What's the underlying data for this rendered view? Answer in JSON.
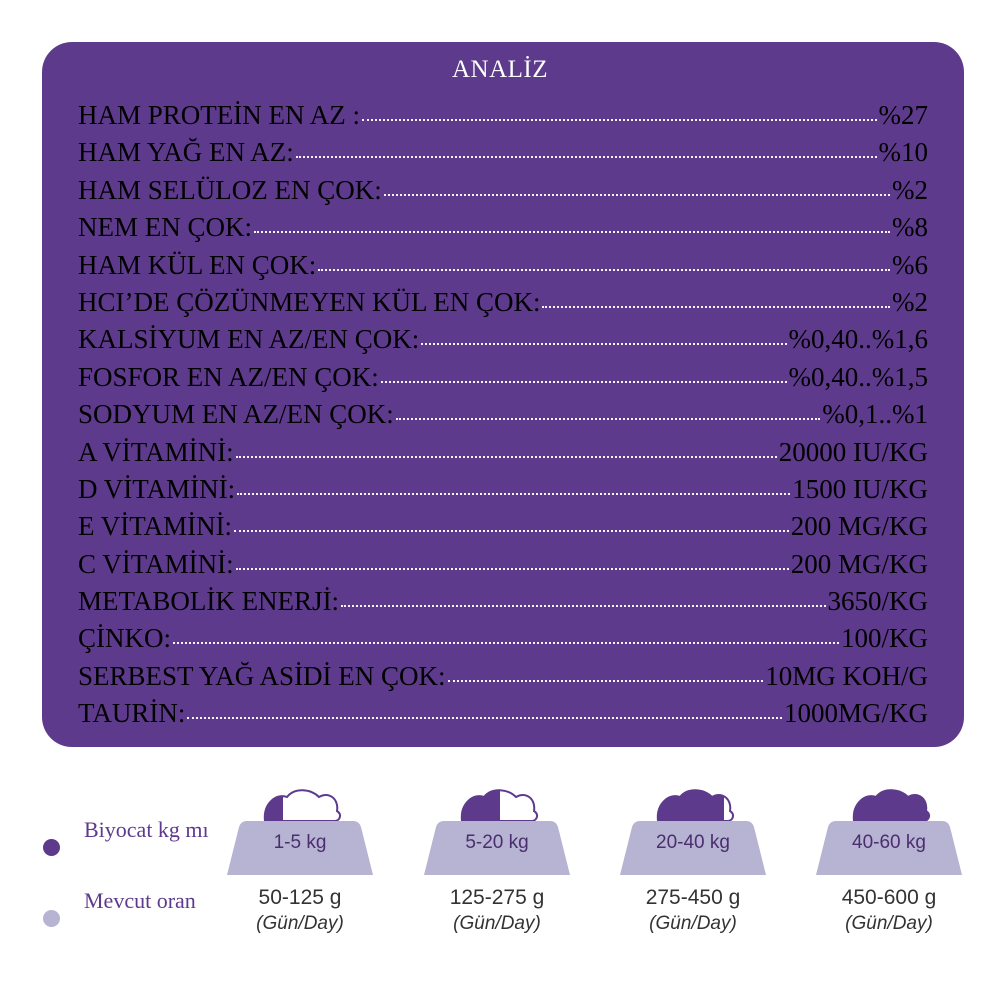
{
  "analysis": {
    "title": "ANALİZ",
    "rows": [
      {
        "label": "HAM PROTEİN EN AZ :",
        "value": "%27"
      },
      {
        "label": "HAM YAĞ EN AZ:",
        "value": "%10"
      },
      {
        "label": "HAM SELÜLOZ EN ÇOK:",
        "value": "%2"
      },
      {
        "label": "NEM EN ÇOK:",
        "value": "%8"
      },
      {
        "label": "HAM KÜL EN ÇOK:",
        "value": "%6"
      },
      {
        "label": "HCI’DE ÇÖZÜNMEYEN KÜL EN ÇOK:",
        "value": "%2"
      },
      {
        "label": "KALSİYUM EN AZ/EN ÇOK:",
        "value": "%0,40..%1,6"
      },
      {
        "label": "FOSFOR EN AZ/EN ÇOK:",
        "value": "%0,40..%1,5"
      },
      {
        "label": "SODYUM EN AZ/EN ÇOK:",
        "value": "%0,1..%1"
      },
      {
        "label": "A VİTAMİNİ:",
        "value": "20000 IU/KG"
      },
      {
        "label": "D VİTAMİNİ:",
        "value": "1500 IU/KG"
      },
      {
        "label": "E VİTAMİNİ:",
        "value": "200 MG/KG"
      },
      {
        "label": "C VİTAMİNİ:",
        "value": "200 MG/KG"
      },
      {
        "label": "METABOLİK ENERJİ:",
        "value": "3650/KG"
      },
      {
        "label": "ÇİNKO:",
        "value": "100/KG"
      },
      {
        "label": "SERBEST YAĞ ASİDİ EN ÇOK:",
        "value": "10MG KOH/G"
      },
      {
        "label": "TAURİN:",
        "value": "1000MG/KG"
      }
    ]
  },
  "legend": [
    {
      "text": "Biyocat kg mı",
      "color": "#5e3a8c"
    },
    {
      "text": "Mevcut oran",
      "color": "#b7b3d3"
    }
  ],
  "bowls": [
    {
      "range": "1-5 kg",
      "amount": "50-125 g",
      "unit": "(Gün/Day)",
      "fill_fraction": 0.25
    },
    {
      "range": "5-20 kg",
      "amount": "125-275 g",
      "unit": "(Gün/Day)",
      "fill_fraction": 0.5
    },
    {
      "range": "20-40 kg",
      "amount": "275-450 g",
      "unit": "(Gün/Day)",
      "fill_fraction": 0.85
    },
    {
      "range": "40-60 kg",
      "amount": "450-600 g",
      "unit": "(Gün/Day)",
      "fill_fraction": 1.0
    }
  ],
  "colors": {
    "panel": "#5e3a8c",
    "bowl": "#b7b3d3",
    "food_filled": "#5e3a8c",
    "food_empty": "#ffffff"
  }
}
